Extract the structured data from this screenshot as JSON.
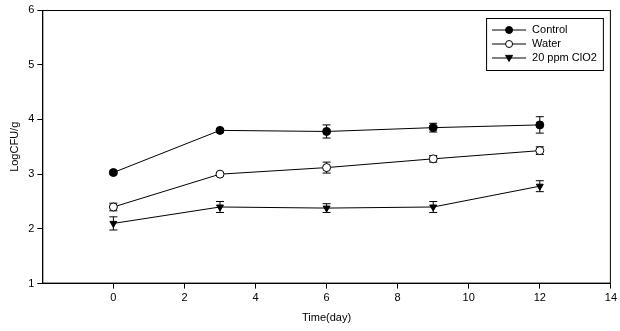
{
  "chart_data": {
    "type": "line",
    "x_label": "Time(day)",
    "y_label": "LogCFU/g",
    "xlim": [
      -2,
      14
    ],
    "xticks": [
      0,
      2,
      4,
      6,
      8,
      10,
      12,
      14
    ],
    "ylim": [
      1,
      6
    ],
    "yticks": [
      1,
      2,
      3,
      4,
      5,
      6
    ],
    "grid": false,
    "legend": "upper right",
    "x": [
      0,
      3,
      6,
      9,
      12
    ],
    "series": [
      {
        "name": "Control",
        "color": "#000000",
        "marker": "circle",
        "line_style": "solid",
        "values": [
          3.03,
          3.8,
          3.78,
          3.85,
          3.9
        ],
        "errors": [
          0.03,
          0.03,
          0.12,
          0.08,
          0.15
        ]
      },
      {
        "name": "Water",
        "color": "#000000",
        "marker": "open_circle",
        "line_style": "solid",
        "values": [
          2.4,
          3.0,
          3.12,
          3.28,
          3.43
        ],
        "errors": [
          0.07,
          0.03,
          0.1,
          0.06,
          0.07
        ]
      },
      {
        "name": "20 ppm ClO2",
        "color": "#000000",
        "marker": "triangle_down",
        "line_style": "solid",
        "values": [
          2.1,
          2.4,
          2.38,
          2.4,
          2.78
        ],
        "errors": [
          0.12,
          0.1,
          0.08,
          0.1,
          0.1
        ]
      }
    ]
  }
}
